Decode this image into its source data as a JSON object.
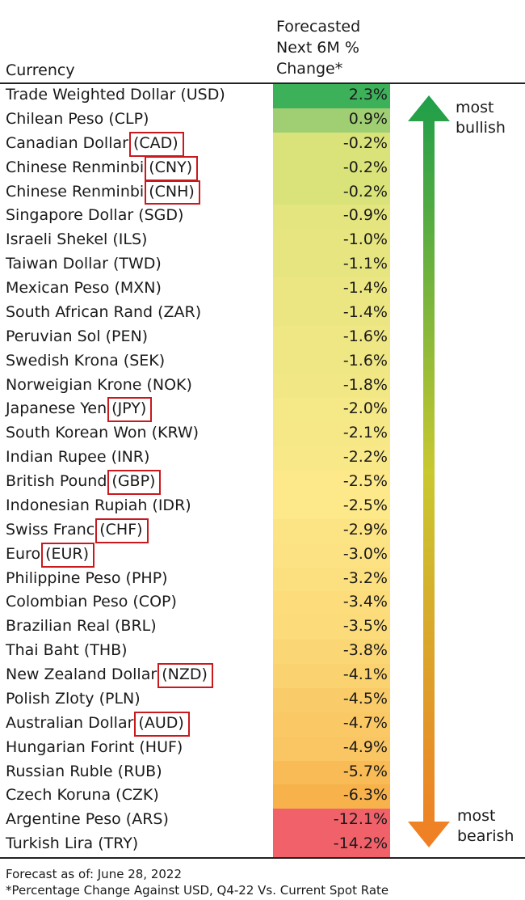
{
  "chart_data": {
    "type": "table",
    "column_headers": {
      "currency": "Currency",
      "forecast": "Forecasted\nNext 6M %\nChange*"
    },
    "value_unit": "%",
    "rows": [
      {
        "currency": "Trade Weighted Dollar (USD)",
        "value": 2.3,
        "label": "2.3%"
      },
      {
        "currency": "Chilean Peso (CLP)",
        "value": 0.9,
        "label": "0.9%"
      },
      {
        "currency": "Canadian Dollar (CAD)",
        "value": -0.2,
        "label": "-0.2%",
        "highlight": "(CAD)"
      },
      {
        "currency": "Chinese Renminbi (CNY)",
        "value": -0.2,
        "label": "-0.2%",
        "highlight": "(CNY)"
      },
      {
        "currency": "Chinese Renminbi (CNH)",
        "value": -0.2,
        "label": "-0.2%",
        "highlight": "(CNH)"
      },
      {
        "currency": "Singapore Dollar (SGD)",
        "value": -0.9,
        "label": "-0.9%"
      },
      {
        "currency": "Israeli Shekel (ILS)",
        "value": -1.0,
        "label": "-1.0%"
      },
      {
        "currency": "Taiwan Dollar (TWD)",
        "value": -1.1,
        "label": "-1.1%"
      },
      {
        "currency": "Mexican Peso (MXN)",
        "value": -1.4,
        "label": "-1.4%"
      },
      {
        "currency": "South African Rand (ZAR)",
        "value": -1.4,
        "label": "-1.4%"
      },
      {
        "currency": "Peruvian Sol (PEN)",
        "value": -1.6,
        "label": "-1.6%"
      },
      {
        "currency": "Swedish Krona (SEK)",
        "value": -1.6,
        "label": "-1.6%"
      },
      {
        "currency": "Norweigian Krone (NOK)",
        "value": -1.8,
        "label": "-1.8%"
      },
      {
        "currency": "Japanese Yen (JPY)",
        "value": -2.0,
        "label": "-2.0%",
        "highlight": "(JPY)"
      },
      {
        "currency": "South Korean Won (KRW)",
        "value": -2.1,
        "label": "-2.1%"
      },
      {
        "currency": "Indian Rupee (INR)",
        "value": -2.2,
        "label": "-2.2%"
      },
      {
        "currency": "British Pound (GBP)",
        "value": -2.5,
        "label": "-2.5%",
        "highlight": "(GBP)"
      },
      {
        "currency": "Indonesian Rupiah (IDR)",
        "value": -2.5,
        "label": "-2.5%"
      },
      {
        "currency": "Swiss Franc (CHF)",
        "value": -2.9,
        "label": "-2.9%",
        "highlight": "(CHF)"
      },
      {
        "currency": "Euro (EUR)",
        "value": -3.0,
        "label": "-3.0%",
        "highlight": "(EUR)"
      },
      {
        "currency": "Philippine Peso (PHP)",
        "value": -3.2,
        "label": "-3.2%"
      },
      {
        "currency": "Colombian Peso (COP)",
        "value": -3.4,
        "label": "-3.4%"
      },
      {
        "currency": "Brazilian Real (BRL)",
        "value": -3.5,
        "label": "-3.5%"
      },
      {
        "currency": "Thai Baht (THB)",
        "value": -3.8,
        "label": "-3.8%"
      },
      {
        "currency": "New Zealand Dollar (NZD)",
        "value": -4.1,
        "label": "-4.1%",
        "highlight": "(NZD)"
      },
      {
        "currency": "Polish Zloty (PLN)",
        "value": -4.5,
        "label": "-4.5%"
      },
      {
        "currency": "Australian Dollar (AUD)",
        "value": -4.7,
        "label": "-4.7%",
        "highlight": "(AUD)"
      },
      {
        "currency": "Hungarian Forint (HUF)",
        "value": -4.9,
        "label": "-4.9%"
      },
      {
        "currency": "Russian Ruble (RUB)",
        "value": -5.7,
        "label": "-5.7%"
      },
      {
        "currency": "Czech Koruna (CZK)",
        "value": -6.3,
        "label": "-6.3%"
      },
      {
        "currency": "Argentine Peso (ARS)",
        "value": -12.1,
        "label": "-12.1%"
      },
      {
        "currency": "Turkish Lira (TRY)",
        "value": -14.2,
        "label": "-14.2%"
      }
    ],
    "scale_labels": {
      "top": "most\nbullish",
      "bottom": "most\nbearish"
    },
    "colors": {
      "bullish": "#3cb15a",
      "neutral": "#fde98a",
      "bearish": "#f0616a",
      "highlight_box": "#c8191e",
      "arrow_top": "#1e9e4a",
      "arrow_bottom": "#f07e24"
    }
  },
  "footnotes": {
    "forecast_date": "Forecast as of: June 28, 2022",
    "note": "*Percentage Change Against USD, Q4-22 Vs. Current Spot Rate"
  }
}
